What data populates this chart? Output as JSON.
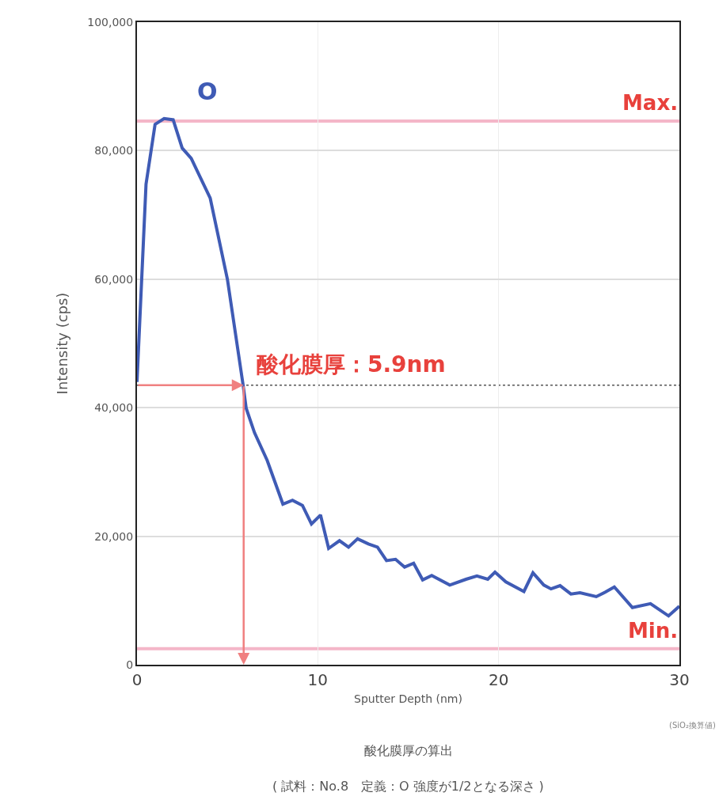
{
  "chart_data": {
    "type": "line",
    "xlabel": "Sputter Depth (nm)",
    "ylabel": "Intensity (cps)",
    "x": [
      0,
      0.5,
      1.0,
      1.5,
      2.0,
      2.5,
      3.0,
      4.05,
      5.0,
      5.87,
      6.04,
      6.5,
      7.2,
      8.07,
      8.6,
      9.15,
      9.65,
      10.15,
      10.6,
      11.2,
      11.7,
      12.2,
      12.8,
      13.3,
      13.8,
      14.3,
      14.8,
      15.3,
      15.8,
      16.3,
      17.3,
      18.2,
      18.8,
      19.4,
      19.8,
      20.4,
      21.4,
      21.9,
      22.5,
      22.9,
      23.4,
      24.0,
      24.5,
      25.4,
      25.9,
      26.4,
      27.4,
      28.4,
      29.4,
      30
    ],
    "series": [
      {
        "name": "O",
        "color": "#3f5bb5",
        "values": [
          44000,
          74800,
          84100,
          85000,
          84800,
          80400,
          78800,
          72600,
          60000,
          43500,
          39900,
          36100,
          31800,
          25000,
          25600,
          24800,
          21900,
          23300,
          18100,
          19300,
          18300,
          19600,
          18800,
          18300,
          16200,
          16400,
          15200,
          15800,
          13200,
          13900,
          12400,
          13300,
          13800,
          13300,
          14400,
          12900,
          11400,
          14300,
          12400,
          11800,
          12300,
          11000,
          11200,
          10600,
          11300,
          12100,
          8900,
          9500,
          7600,
          9100
        ]
      }
    ],
    "xlim": [
      0,
      30
    ],
    "xticks": [
      0,
      10,
      20,
      30
    ],
    "ylim": [
      0,
      100000
    ],
    "yticks": [
      0,
      {
        "value": 20000,
        "label": "20,000"
      },
      {
        "value": 40000,
        "label": "40,000"
      },
      {
        "value": 60000,
        "label": "60,000"
      },
      {
        "value": 80000,
        "label": "80,000"
      },
      {
        "value": 100000,
        "label": "100,000"
      }
    ],
    "grid": true,
    "legend": false,
    "marker": "none",
    "line_style": "solid",
    "ref_lines": [
      {
        "axis": "y",
        "value": 84600,
        "label": "Max.",
        "color": "#f4b6c8"
      },
      {
        "axis": "y",
        "value": 2500,
        "label": "Min.",
        "color": "#f4b6c8"
      },
      {
        "axis": "y",
        "value": 43500,
        "label": null,
        "color": "#555555",
        "line_style": "dotted"
      }
    ],
    "annotations": [
      {
        "text": "酸化膜厚：5.9nm",
        "x": 5.9,
        "y": 43500
      },
      "(SiO₂換算値)",
      "酸化膜厚の算出",
      "( 試料：No.8　定義：O 強度が1/2となる深さ )"
    ]
  }
}
